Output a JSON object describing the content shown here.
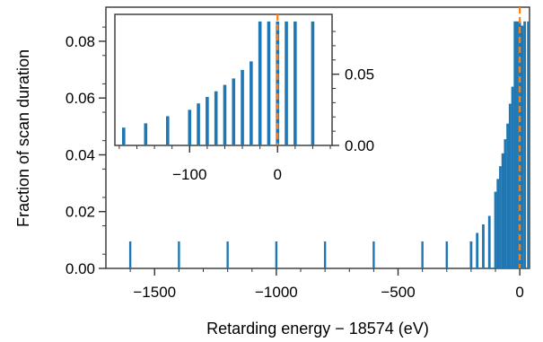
{
  "chart_data": [
    {
      "type": "bar",
      "xlabel": "Retarding energy − 18574 (eV)",
      "ylabel": "Fraction of scan duration",
      "xlim": [
        -1700,
        40
      ],
      "ylim": [
        0,
        0.092
      ],
      "x": [
        -1600,
        -1400,
        -1200,
        -1000,
        -800,
        -600,
        -400,
        -300,
        -200,
        -175,
        -150,
        -125,
        -100,
        -90,
        -80,
        -70,
        -60,
        -50,
        -40,
        -30,
        -20,
        -10,
        0,
        10,
        20,
        35
      ],
      "values": [
        0.0095,
        0.0095,
        0.0095,
        0.0095,
        0.0095,
        0.0095,
        0.0095,
        0.0095,
        0.0095,
        0.0125,
        0.0155,
        0.0185,
        0.027,
        0.0315,
        0.036,
        0.0405,
        0.0455,
        0.051,
        0.058,
        0.064,
        0.087,
        0.087,
        0.087,
        0.0855,
        0.087,
        0.087
      ],
      "xticks": [
        "−1500",
        "−1000",
        "−500",
        "0"
      ],
      "yticks": [
        "0.00",
        "0.02",
        "0.04",
        "0.06",
        "0.08"
      ],
      "vline": 0,
      "bar_color": "#1f77b4",
      "vline_color": "#ff7f0e",
      "grid": false
    },
    {
      "type": "bar",
      "inset": true,
      "xlim": [
        -185,
        62
      ],
      "ylim": [
        0,
        0.092
      ],
      "x": [
        -175,
        -150,
        -125,
        -100,
        -90,
        -80,
        -70,
        -60,
        -50,
        -40,
        -30,
        -20,
        -10,
        0,
        10,
        20,
        40
      ],
      "values": [
        0.0125,
        0.0155,
        0.0205,
        0.025,
        0.0295,
        0.034,
        0.038,
        0.0425,
        0.047,
        0.053,
        0.059,
        0.087,
        0.087,
        0.087,
        0.087,
        0.087,
        0.087
      ],
      "xticks": [
        "−100",
        "0"
      ],
      "yticks": [
        "0.00",
        "0.05"
      ],
      "vline": 0,
      "bar_color": "#1f77b4",
      "vline_color": "#ff7f0e",
      "grid": false
    }
  ]
}
